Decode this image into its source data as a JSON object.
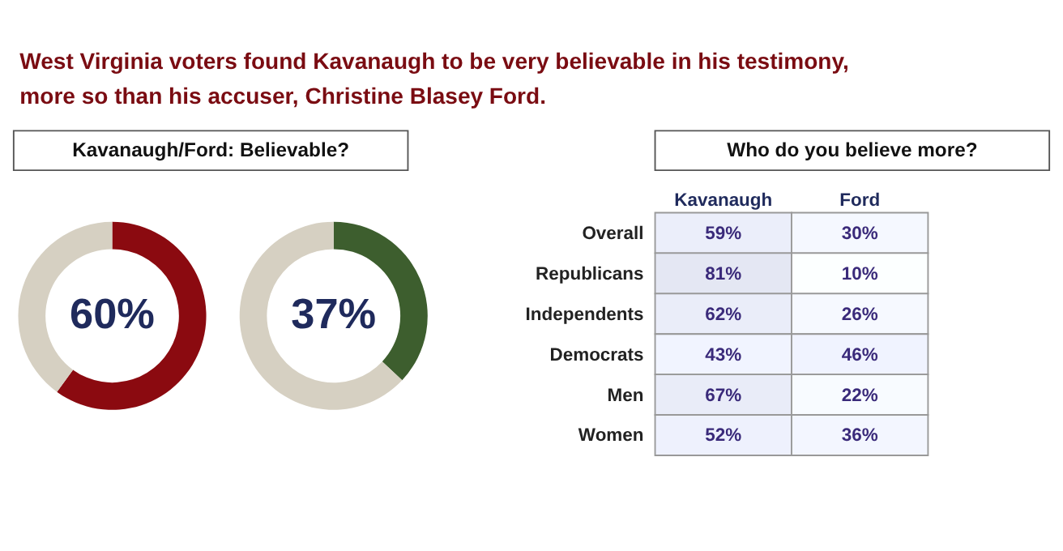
{
  "chart_data": [
    {
      "type": "donut",
      "title": "West Virginia voters found Kavanaugh to be very believable in his testimony, more so than his accuser, Christine Blasey Ford.",
      "subtitle": "Kavanaugh/Ford: Believable?",
      "categories": [
        null,
        null
      ],
      "values": [
        60,
        40
      ],
      "colors": [
        "#8b0a10",
        "#d6d0c2"
      ],
      "annotations": [
        "60%"
      ]
    },
    {
      "type": "donut",
      "categories": [
        null,
        null
      ],
      "values": [
        37,
        63
      ],
      "colors": [
        "#3d5e2e",
        "#d6d0c2"
      ],
      "annotations": [
        "37%"
      ]
    },
    {
      "type": "heatmap",
      "title": "Who do you believe more?",
      "categories": [
        "Kavanaugh",
        "Ford"
      ],
      "y_categories": [
        "Overall",
        "Republicans",
        "Independents",
        "Democrats",
        "Men",
        "Women"
      ],
      "cells": [
        [
          59,
          30
        ],
        [
          81,
          10
        ],
        [
          62,
          26
        ],
        [
          43,
          46
        ],
        [
          67,
          22
        ],
        [
          52,
          36
        ]
      ],
      "cell_labels": [
        [
          "59%",
          "30%"
        ],
        [
          "81%",
          "10%"
        ],
        [
          "62%",
          "26%"
        ],
        [
          "43%",
          "46%"
        ],
        [
          "67%",
          "22%"
        ],
        [
          "52%",
          "36%"
        ]
      ]
    }
  ]
}
